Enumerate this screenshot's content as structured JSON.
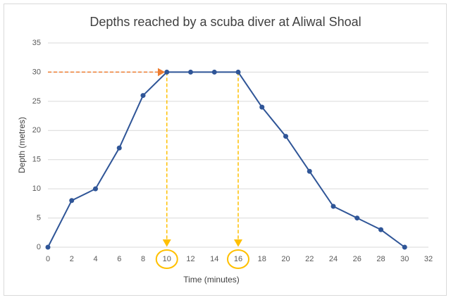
{
  "chart_data": {
    "type": "line",
    "title": "Depths reached by a scuba diver at Aliwal Shoal",
    "x_label": "Time (minutes)",
    "y_label": "Depth (metres)",
    "x": [
      0,
      2,
      4,
      6,
      8,
      10,
      12,
      14,
      16,
      18,
      20,
      22,
      24,
      26,
      28,
      30
    ],
    "series": [
      {
        "name": "Depth",
        "color": "#2f5597",
        "values": [
          0,
          8,
          10,
          17,
          26,
          30,
          30,
          30,
          30,
          24,
          19,
          13,
          7,
          5,
          3,
          0
        ]
      }
    ],
    "xlim": [
      0,
      32
    ],
    "xticks": [
      0,
      2,
      4,
      6,
      8,
      10,
      12,
      14,
      16,
      18,
      20,
      22,
      24,
      26,
      28,
      30,
      32
    ],
    "ylim": [
      0,
      35
    ],
    "yticks": [
      0,
      5,
      10,
      15,
      20,
      25,
      30,
      35
    ],
    "grid": true
  }
}
